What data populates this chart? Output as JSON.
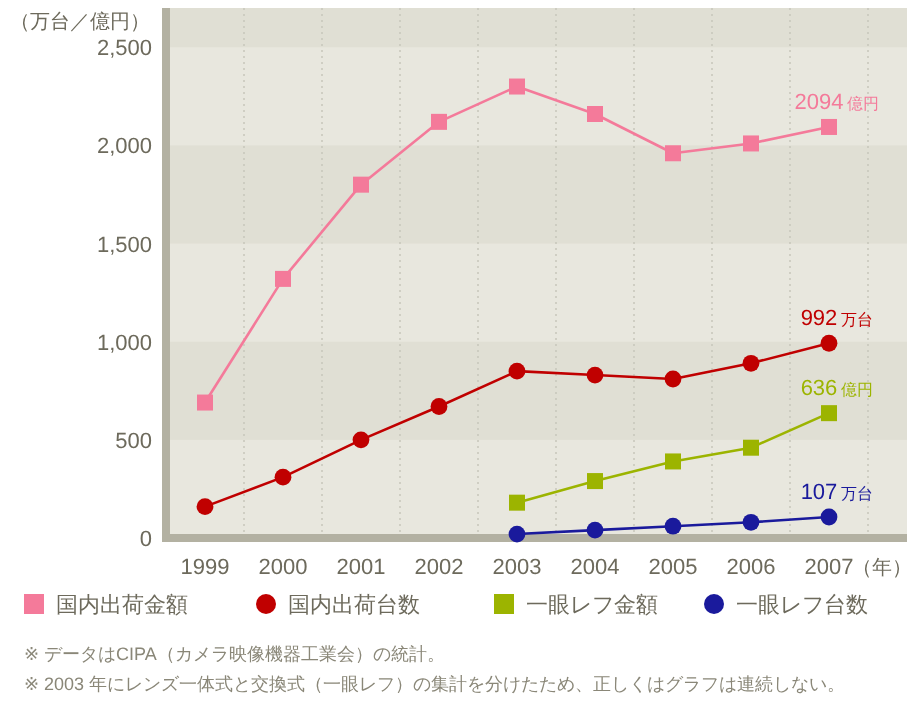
{
  "chart_data": {
    "type": "line",
    "categories": [
      "1999",
      "2000",
      "2001",
      "2002",
      "2003",
      "2004",
      "2005",
      "2006",
      "2007"
    ],
    "xlabel": "（年）",
    "ylabel": "（万台／億円）",
    "ylim": [
      0,
      2700
    ],
    "yticks": [
      0,
      500,
      {
        "value": 1000,
        "label": "1,000"
      },
      {
        "value": 1500,
        "label": "1,500"
      },
      {
        "value": 2000,
        "label": "2,000"
      },
      {
        "value": 2500,
        "label": "2,500"
      }
    ],
    "grid": true,
    "legend": "bottom",
    "series": [
      {
        "name": "国内出荷金額",
        "color": "#f47a9a",
        "marker": "square",
        "values": [
          690,
          1320,
          1800,
          2120,
          2300,
          2160,
          1960,
          2010,
          2094
        ],
        "value_labels": [
          null,
          null,
          null,
          null,
          null,
          null,
          null,
          null,
          "2094 億円"
        ]
      },
      {
        "name": "国内出荷台数",
        "color": "#c00000",
        "marker": "circle",
        "values": [
          160,
          310,
          500,
          670,
          850,
          830,
          810,
          890,
          992
        ],
        "value_labels": [
          null,
          null,
          null,
          null,
          null,
          null,
          null,
          null,
          "992 万台"
        ]
      },
      {
        "name": "一眼レフ金額",
        "color": "#9cb400",
        "marker": "square",
        "values": [
          null,
          null,
          null,
          null,
          180,
          290,
          390,
          460,
          636
        ],
        "value_labels": [
          null,
          null,
          null,
          null,
          null,
          null,
          null,
          null,
          "636 億円"
        ]
      },
      {
        "name": "一眼レフ台数",
        "color": "#1a1a9c",
        "marker": "circle",
        "values": [
          null,
          null,
          null,
          null,
          20,
          40,
          60,
          80,
          107
        ],
        "value_labels": [
          null,
          null,
          null,
          null,
          null,
          null,
          null,
          null,
          "107 万台"
        ]
      }
    ],
    "annotations": [
      "※ データはCIPA（カメラ映像機器工業会）の統計。",
      "※ 2003 年にレンズ一体式と交換式（一眼レフ）の集計を分けたため、正しくはグラフは連続しない。"
    ]
  }
}
